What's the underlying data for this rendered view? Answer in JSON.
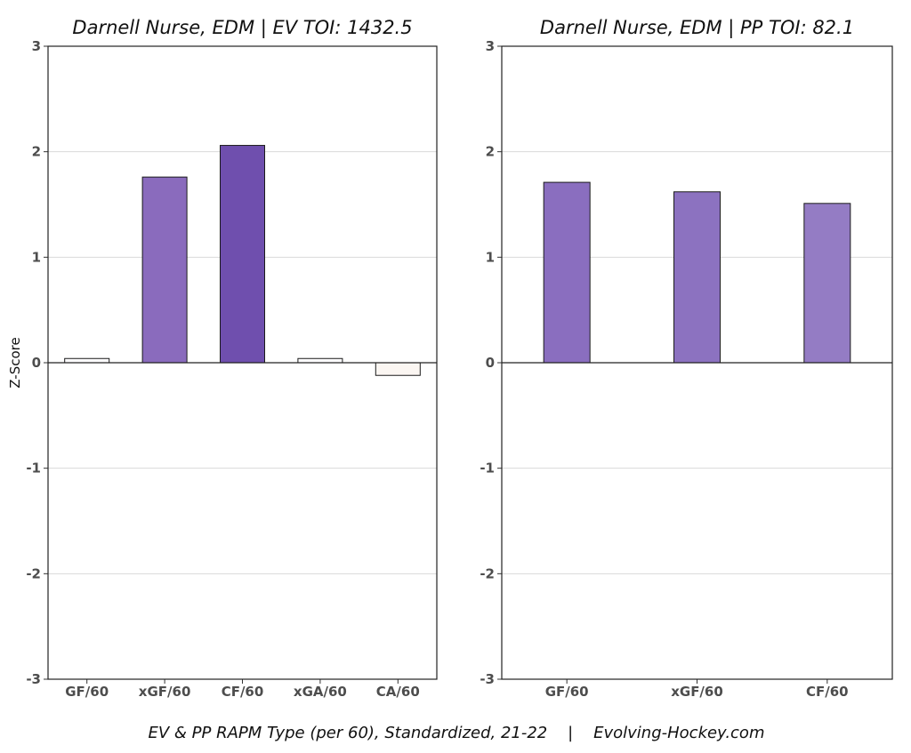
{
  "caption": "EV & PP RAPM Type (per 60), Standardized, 21-22    |    Evolving-Hockey.com",
  "chart_data": [
    {
      "type": "bar",
      "title": "Darnell Nurse, EDM  |  EV TOI: 1432.5",
      "ylabel": "Z-Score",
      "xlabel": "",
      "ylim": [
        -3,
        3
      ],
      "yticks": [
        "3",
        "2",
        "1",
        "0",
        "-1",
        "-2",
        "-3"
      ],
      "grid": "horizontal",
      "categories": [
        "GF/60",
        "xGF/60",
        "CF/60",
        "xGA/60",
        "CA/60"
      ],
      "values": [
        0.04,
        1.76,
        2.06,
        0.04,
        -0.12
      ],
      "colors": [
        "#fdfcfe",
        "#8a6bbd",
        "#6f4fae",
        "#fdfcfe",
        "#fbf6f2"
      ]
    },
    {
      "type": "bar",
      "title": "Darnell Nurse, EDM  |  PP TOI: 82.1",
      "ylabel": "",
      "xlabel": "",
      "ylim": [
        -3,
        3
      ],
      "yticks": [
        "3",
        "2",
        "1",
        "0",
        "-1",
        "-2",
        "-3"
      ],
      "grid": "horizontal",
      "categories": [
        "GF/60",
        "xGF/60",
        "CF/60"
      ],
      "values": [
        1.71,
        1.62,
        1.51
      ],
      "colors": [
        "#8a6ebf",
        "#8c72c0",
        "#947cc4"
      ]
    }
  ]
}
